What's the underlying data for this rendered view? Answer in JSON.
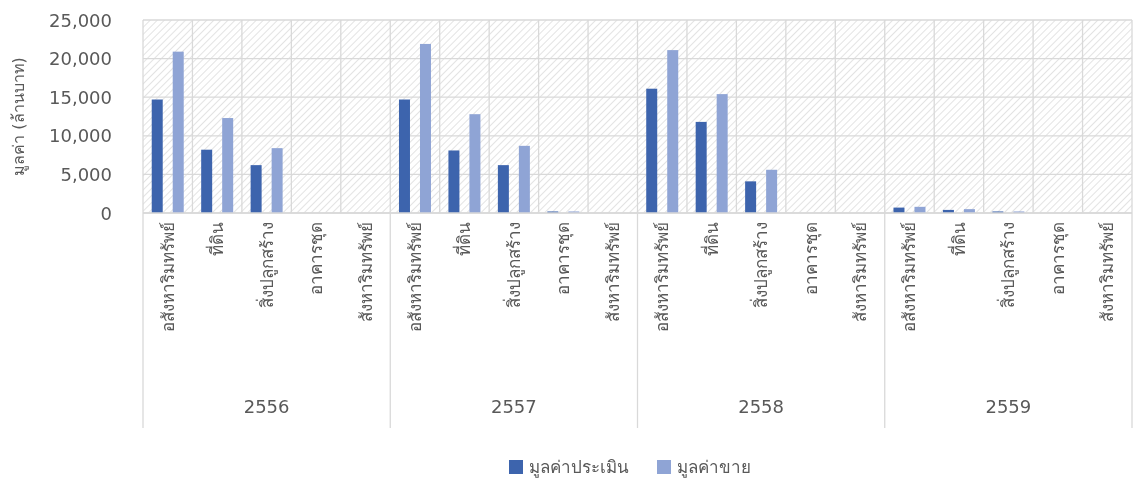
{
  "chart_data": {
    "type": "bar",
    "ylabel": "มูลค่า (ล้านบาท)",
    "categories": [
      "อสังหาริมทรัพย์",
      "ที่ดิน",
      "สิ่งปลูกสร้าง",
      "อาคารชุด",
      "สังหาริมทรัพย์",
      "อสังหาริมทรัพย์",
      "ที่ดิน",
      "สิ่งปลูกสร้าง",
      "อาคารชุด",
      "สังหาริมทรัพย์",
      "อสังหาริมทรัพย์",
      "ที่ดิน",
      "สิ่งปลูกสร้าง",
      "อาคารชุด",
      "สังหาริมทรัพย์",
      "อสังหาริมทรัพย์",
      "ที่ดิน",
      "สิ่งปลูกสร้าง",
      "อาคารชุด",
      "สังหาริมทรัพย์"
    ],
    "series": [
      {
        "name": "มูลค่าประเมิน",
        "color": "#3d64ad",
        "values": [
          14700,
          8200,
          6200,
          0,
          0,
          14700,
          8100,
          6200,
          200,
          0,
          16100,
          11800,
          4100,
          0,
          0,
          700,
          400,
          200,
          0,
          0
        ]
      },
      {
        "name": "มูลค่าขาย",
        "color": "#8fa4d5",
        "values": [
          20900,
          12300,
          8400,
          0,
          0,
          21900,
          12800,
          8700,
          200,
          0,
          21100,
          15400,
          5600,
          0,
          0,
          800,
          500,
          200,
          0,
          0
        ]
      }
    ],
    "annotations": [
      "2556",
      "2557",
      "2558",
      "2559"
    ],
    "ylim": [
      0,
      25000
    ],
    "yticks": [
      {
        "value": 0,
        "label": "0"
      },
      {
        "value": 5000,
        "label": "5,000"
      },
      {
        "value": 10000,
        "label": "10,000"
      },
      {
        "value": 15000,
        "label": "15,000"
      },
      {
        "value": 20000,
        "label": "20,000"
      },
      {
        "value": 25000,
        "label": "25,000"
      }
    ],
    "grid": true,
    "legend": "bottom"
  }
}
